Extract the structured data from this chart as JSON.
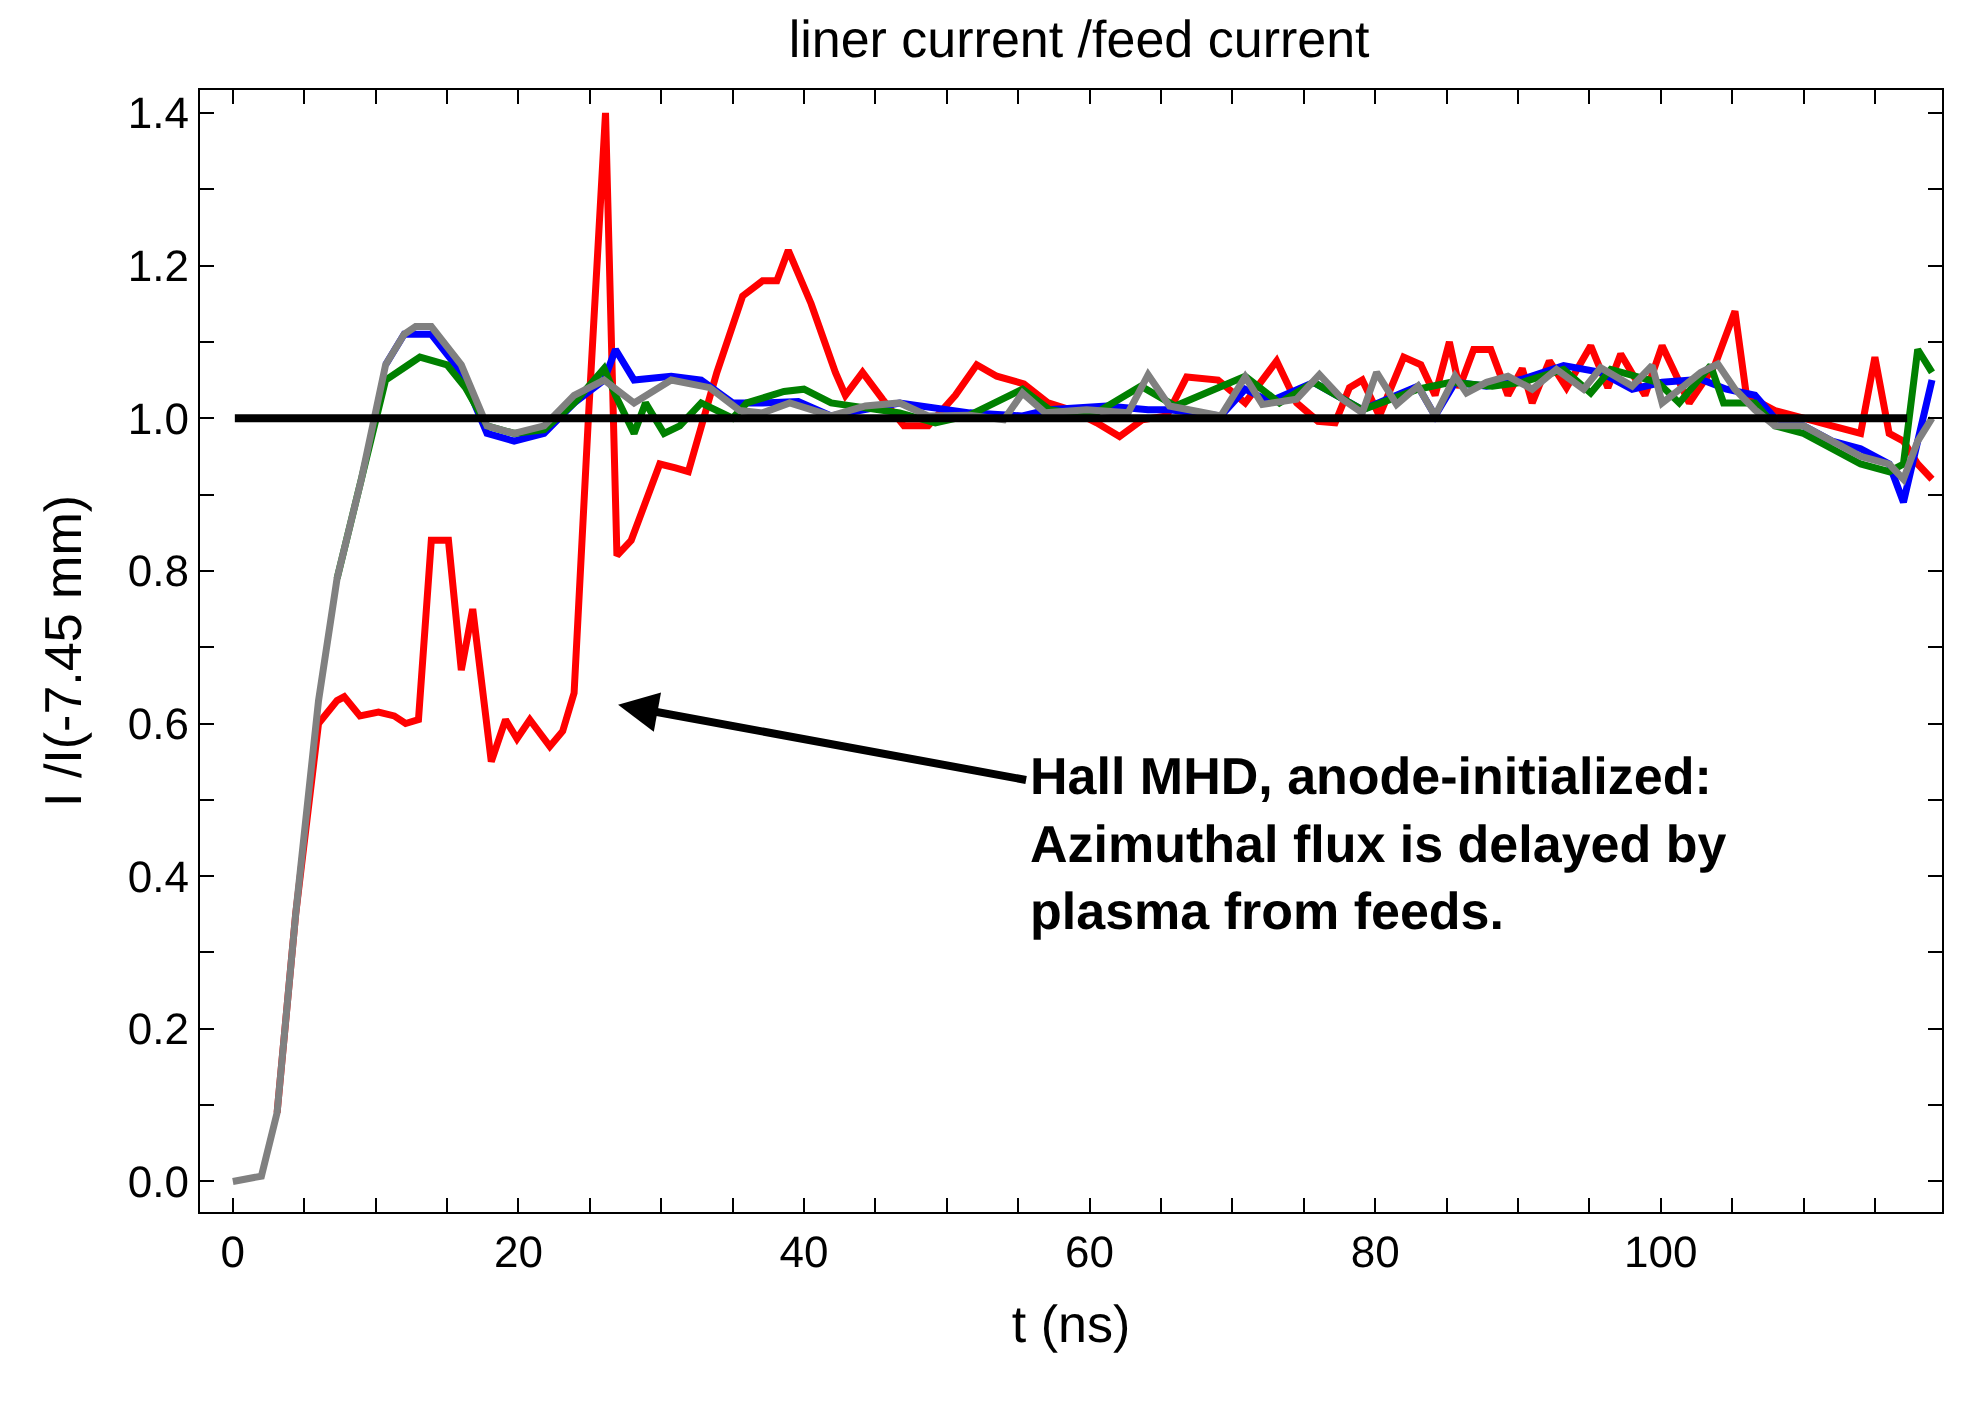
{
  "chart_data": {
    "type": "line",
    "title": "liner current /feed current",
    "xlabel": "t (ns)",
    "ylabel": "I /I(-7.45 mm)",
    "xlim": [
      -2.3,
      119.7
    ],
    "ylim": [
      -0.04,
      1.43
    ],
    "xticks": [
      0,
      {
        "value": 5,
        "label": null
      },
      {
        "value": 10,
        "label": null
      },
      {
        "value": 15,
        "label": null
      },
      20,
      {
        "value": 25,
        "label": null
      },
      {
        "value": 30,
        "label": null
      },
      {
        "value": 35,
        "label": null
      },
      40,
      {
        "value": 45,
        "label": null
      },
      {
        "value": 50,
        "label": null
      },
      {
        "value": 55,
        "label": null
      },
      60,
      {
        "value": 65,
        "label": null
      },
      {
        "value": 70,
        "label": null
      },
      {
        "value": 75,
        "label": null
      },
      80,
      {
        "value": 85,
        "label": null
      },
      {
        "value": 90,
        "label": null
      },
      {
        "value": 95,
        "label": null
      },
      100,
      {
        "value": 105,
        "label": null
      },
      {
        "value": 110,
        "label": null
      },
      {
        "value": 115,
        "label": null
      }
    ],
    "yticks": [
      {
        "value": 0,
        "label": "0.0"
      },
      {
        "value": 0.1,
        "label": null
      },
      0.2,
      {
        "value": 0.3,
        "label": null
      },
      0.4,
      {
        "value": 0.5,
        "label": null
      },
      0.6,
      {
        "value": 0.7,
        "label": null
      },
      0.8,
      {
        "value": 0.9,
        "label": null
      },
      {
        "value": 1.0,
        "label": "1.0"
      },
      {
        "value": 1.1,
        "label": null
      },
      1.2,
      {
        "value": 1.3,
        "label": null
      },
      1.4
    ],
    "marker": "none",
    "line_style": "solid",
    "ref_lines": [
      {
        "axis": "y",
        "value": 1.0,
        "color": "#000000"
      }
    ],
    "annotations": [
      "Hall MHD, anode-initialized:\nAzimuthal flux is delayed by\nplasma from feeds."
    ],
    "series": [
      {
        "color": "#ff0000",
        "x": [
          3.1,
          4.4,
          6,
          7.3,
          7.8,
          8.9,
          10.2,
          11.3,
          12.1,
          13,
          13.9,
          15.1,
          16,
          16.8,
          18.1,
          19.1,
          19.9,
          20.8,
          22.2,
          23.1,
          23.9,
          24.9,
          26.1,
          26.9,
          27.9,
          29.9,
          31,
          31.9,
          33.9,
          35.7,
          37.1,
          38.1,
          38.9,
          40.5,
          42.2,
          42.9,
          44.1,
          45.5,
          47,
          48.7,
          50.6,
          52.1,
          53.5,
          55.4,
          57.1,
          58.8,
          60.5,
          62.1,
          63.7,
          65.4,
          66.8,
          69,
          70.9,
          73.1,
          74.5,
          76,
          77.2,
          78.2,
          79.1,
          80.3,
          82,
          83.2,
          84.2,
          85.2,
          85.9,
          86.9,
          88.1,
          89.3,
          90.3,
          91,
          92.2,
          93.4,
          95.1,
          96.3,
          97.2,
          98.9,
          100.1,
          102,
          103.8,
          105.2,
          106,
          108,
          110,
          112,
          114,
          115,
          116,
          117,
          118,
          119
        ],
        "values": [
          0.09,
          0.35,
          0.6,
          0.63,
          0.635,
          0.61,
          0.615,
          0.61,
          0.6,
          0.605,
          0.84,
          0.84,
          0.67,
          0.75,
          0.55,
          0.605,
          0.58,
          0.605,
          0.57,
          0.59,
          0.64,
          1.0,
          1.4,
          0.82,
          0.84,
          0.94,
          0.935,
          0.93,
          1.06,
          1.16,
          1.18,
          1.18,
          1.22,
          1.15,
          1.06,
          1.03,
          1.06,
          1.025,
          0.99,
          0.99,
          1.03,
          1.07,
          1.055,
          1.045,
          1.02,
          1.01,
          0.994,
          0.976,
          0.998,
          1.003,
          1.054,
          1.05,
          1.02,
          1.075,
          1.02,
          0.996,
          0.994,
          1.04,
          1.05,
          1.003,
          1.08,
          1.07,
          1.03,
          1.1,
          1.04,
          1.09,
          1.09,
          1.03,
          1.065,
          1.02,
          1.075,
          1.04,
          1.095,
          1.04,
          1.084,
          1.03,
          1.095,
          1.02,
          1.07,
          1.14,
          1.03,
          1.01,
          1.0,
          0.99,
          0.98,
          1.08,
          0.98,
          0.97,
          0.94,
          0.92
        ]
      },
      {
        "color": "#0000ff",
        "x": [
          10.7,
          12,
          12.8,
          13.9,
          16,
          17.8,
          19.7,
          21.8,
          23.9,
          26,
          26.8,
          28.1,
          30.7,
          32.8,
          35,
          37.1,
          39.6,
          41.9,
          46.7,
          51.6,
          55.3,
          57.1,
          61.2,
          64.1,
          65.6,
          69.2,
          70.9,
          72.6,
          75.7,
          79.1,
          83,
          84.2,
          85.6,
          87.8,
          90.3,
          93.2,
          95.8,
          98,
          100.1,
          102.8,
          104.6,
          106.6,
          108,
          110,
          112,
          114,
          116,
          117,
          118,
          119
        ],
        "values": [
          1.07,
          1.11,
          1.11,
          1.11,
          1.06,
          0.98,
          0.97,
          0.98,
          1.02,
          1.05,
          1.09,
          1.05,
          1.055,
          1.05,
          1.02,
          1.02,
          1.022,
          1.003,
          1.02,
          1.007,
          1.003,
          1.011,
          1.016,
          1.011,
          1.011,
          1.003,
          1.038,
          1.022,
          1.047,
          1.011,
          1.042,
          1.003,
          1.047,
          1.042,
          1.051,
          1.069,
          1.06,
          1.038,
          1.047,
          1.051,
          1.038,
          1.03,
          1.0,
          0.99,
          0.97,
          0.96,
          0.94,
          0.89,
          0.97,
          1.05
        ]
      },
      {
        "color": "#008000",
        "x": [
          7.3,
          9,
          10.7,
          12.3,
          13.1,
          15,
          16.3,
          17.8,
          19.7,
          21.8,
          23.9,
          26,
          26.8,
          28.1,
          28.9,
          30.2,
          31.3,
          32.8,
          35,
          36,
          38.6,
          40,
          41.9,
          46.7,
          49.2,
          51.6,
          55.3,
          57.2,
          60.1,
          63.6,
          66,
          70.9,
          73.3,
          75.7,
          79.1,
          83,
          85.3,
          88.2,
          90.3,
          93.2,
          95.1,
          96.5,
          99.8,
          101.3,
          103.5,
          104.4,
          106.6,
          108,
          110,
          112,
          114,
          116,
          117,
          118,
          119
        ],
        "values": [
          0.79,
          0.92,
          1.05,
          1.07,
          1.08,
          1.07,
          1.04,
          0.99,
          0.98,
          0.985,
          1.02,
          1.065,
          1.03,
          0.98,
          1.02,
          0.98,
          0.99,
          1.02,
          1.0,
          1.02,
          1.035,
          1.038,
          1.02,
          1.007,
          0.994,
          1.004,
          1.038,
          1.011,
          1.003,
          1.042,
          1.016,
          1.055,
          1.02,
          1.047,
          1.011,
          1.038,
          1.047,
          1.042,
          1.047,
          1.064,
          1.033,
          1.064,
          1.047,
          1.02,
          1.069,
          1.02,
          1.02,
          0.99,
          0.98,
          0.96,
          0.94,
          0.93,
          0.94,
          1.09,
          1.06
        ]
      },
      {
        "color": "#808080",
        "x": [
          0,
          2,
          3.1,
          4.4,
          6,
          7.3,
          9,
          10.7,
          12,
          12.8,
          13.9,
          16,
          17.8,
          19.7,
          21.8,
          23.9,
          26,
          28.1,
          30.7,
          33.4,
          35.5,
          37.1,
          39,
          41.9,
          44.3,
          46.7,
          48.7,
          51.6,
          54,
          55.3,
          56.9,
          59.8,
          62.7,
          64.1,
          65.6,
          69.2,
          70.9,
          72.1,
          74.5,
          76.1,
          77.7,
          79.1,
          80.1,
          81.5,
          83,
          84.2,
          85.6,
          86.4,
          87.8,
          89.3,
          91,
          92.7,
          94.6,
          95.8,
          98,
          99.4,
          100.1,
          101.6,
          102.8,
          104,
          105.2,
          106.6,
          108,
          110,
          112,
          114,
          116,
          117,
          118,
          119
        ],
        "values": [
          0,
          0.007,
          0.09,
          0.35,
          0.63,
          0.79,
          0.92,
          1.07,
          1.11,
          1.12,
          1.12,
          1.07,
          0.99,
          0.98,
          0.99,
          1.03,
          1.05,
          1.02,
          1.05,
          1.04,
          1.01,
          1.007,
          1.02,
          1.003,
          1.016,
          1.02,
          1.003,
          1.004,
          0.998,
          1.033,
          1.007,
          1.011,
          1.007,
          1.057,
          1.016,
          1.003,
          1.054,
          1.018,
          1.025,
          1.057,
          1.025,
          1.007,
          1.06,
          1.018,
          1.042,
          1.003,
          1.055,
          1.033,
          1.047,
          1.055,
          1.038,
          1.064,
          1.038,
          1.066,
          1.042,
          1.069,
          1.02,
          1.042,
          1.06,
          1.071,
          1.038,
          1.011,
          0.99,
          0.99,
          0.97,
          0.95,
          0.94,
          0.92,
          0.97,
          1.0
        ]
      }
    ]
  }
}
